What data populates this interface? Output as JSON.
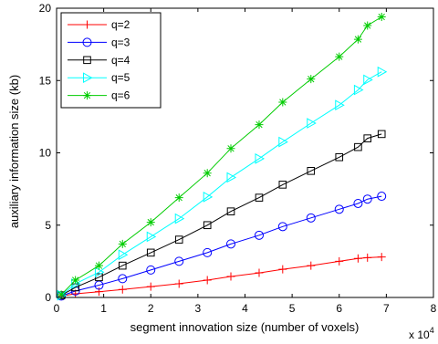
{
  "chart_data": {
    "type": "line",
    "xlabel": "segment innovation size (number of voxels)",
    "ylabel": "auxiliary information size (kb)",
    "x_multiplier": {
      "base": "x 10",
      "exponent": "4"
    },
    "xlim": [
      0,
      8
    ],
    "ylim": [
      0,
      20
    ],
    "xticks": [
      "0",
      "1",
      "2",
      "3",
      "4",
      "5",
      "6",
      "7",
      "8"
    ],
    "yticks": [
      "0",
      "5",
      "10",
      "15",
      "20"
    ],
    "grid": false,
    "legend_position": "top-left",
    "x": [
      0.1,
      0.4,
      0.9,
      1.4,
      2.0,
      2.6,
      3.2,
      3.7,
      4.3,
      4.8,
      5.4,
      6.0,
      6.4,
      6.6,
      6.9
    ],
    "series": [
      {
        "name": "q=2",
        "color": "#ff0000",
        "marker": "plus",
        "values": [
          0.1,
          0.25,
          0.4,
          0.55,
          0.75,
          0.95,
          1.2,
          1.45,
          1.7,
          1.95,
          2.2,
          2.5,
          2.7,
          2.75,
          2.8
        ]
      },
      {
        "name": "q=3",
        "color": "#0000ff",
        "marker": "circle",
        "values": [
          0.1,
          0.45,
          0.85,
          1.3,
          1.9,
          2.5,
          3.1,
          3.7,
          4.3,
          4.9,
          5.5,
          6.1,
          6.5,
          6.8,
          7.0
        ]
      },
      {
        "name": "q=4",
        "color": "#000000",
        "marker": "square",
        "values": [
          0.15,
          0.7,
          1.4,
          2.2,
          3.1,
          4.0,
          5.0,
          5.95,
          6.9,
          7.8,
          8.75,
          9.7,
          10.4,
          11.0,
          11.3
        ]
      },
      {
        "name": "q=5",
        "color": "#00ffff",
        "marker": "triangle-right",
        "values": [
          0.15,
          0.95,
          1.75,
          2.95,
          4.2,
          5.45,
          6.95,
          8.3,
          9.6,
          10.75,
          12.05,
          13.3,
          14.35,
          15.05,
          15.6
        ]
      },
      {
        "name": "q=6",
        "color": "#00cc00",
        "marker": "asterisk",
        "values": [
          0.2,
          1.2,
          2.2,
          3.7,
          5.2,
          6.9,
          8.6,
          10.3,
          11.95,
          13.5,
          15.1,
          16.65,
          17.85,
          18.8,
          19.4
        ]
      }
    ]
  }
}
